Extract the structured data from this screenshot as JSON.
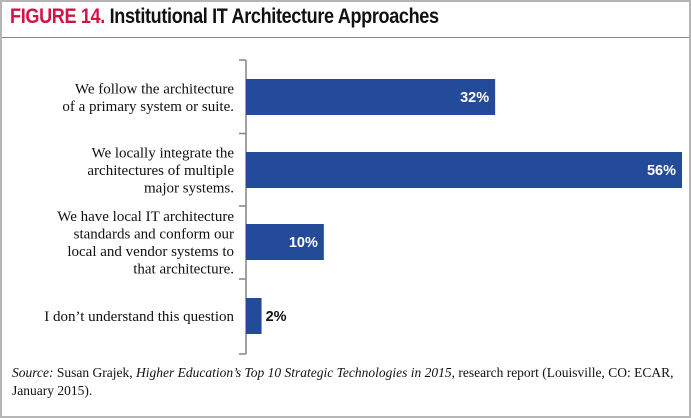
{
  "figure": {
    "number_label": "FIGURE 14.",
    "title": "Institutional IT Architecture Approaches",
    "title_accent_color": "#d31245"
  },
  "chart_data": {
    "type": "bar",
    "orientation": "horizontal",
    "title": "Institutional IT Architecture Approaches",
    "xlabel": "",
    "ylabel": "",
    "xlim": [
      0,
      56
    ],
    "grid": false,
    "legend": "none",
    "bar_color": "#244a9a",
    "categories": [
      [
        "We follow the architecture",
        "of a primary system or suite."
      ],
      [
        "We locally integrate the",
        "architectures of multiple",
        "major systems."
      ],
      [
        "We have local IT architecture",
        "standards and conform our",
        "local and vendor systems to",
        "that architecture."
      ],
      [
        "I don’t understand this question"
      ]
    ],
    "values": [
      32,
      56,
      10,
      2
    ],
    "value_labels": [
      "32%",
      "56%",
      "10%",
      "2%"
    ]
  },
  "source": {
    "prefix": "Source:",
    "author": " Susan Grajek, ",
    "work_title": "Higher Education’s Top 10 Strategic Technologies in 2015",
    "rest": ", research report (Louisville, CO: ECAR, January 2015)."
  }
}
